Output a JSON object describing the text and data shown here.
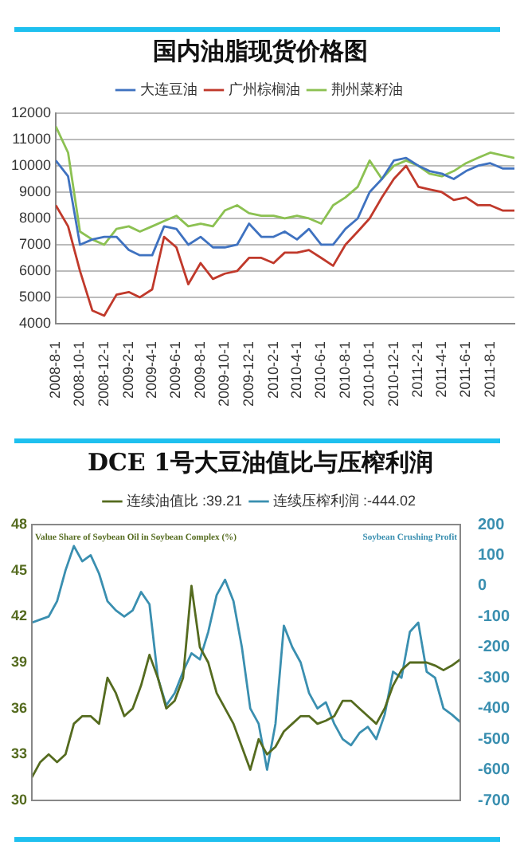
{
  "chart_data": [
    {
      "type": "line",
      "title": "国内油脂现货价格图",
      "x": [
        "2008-08",
        "2008-09",
        "2008-10",
        "2008-11",
        "2008-12",
        "2009-01",
        "2009-02",
        "2009-03",
        "2009-04",
        "2009-05",
        "2009-06",
        "2009-07",
        "2009-08",
        "2009-09",
        "2009-10",
        "2009-11",
        "2009-12",
        "2010-01",
        "2010-02",
        "2010-03",
        "2010-04",
        "2010-05",
        "2010-06",
        "2010-07",
        "2010-08",
        "2010-09",
        "2010-10",
        "2010-11",
        "2010-12",
        "2011-01",
        "2011-02",
        "2011-03",
        "2011-04",
        "2011-05",
        "2011-06",
        "2011-07",
        "2011-08",
        "2011-09",
        "2011-10"
      ],
      "series": [
        {
          "name": "大连豆油",
          "color": "#3f72c0",
          "values": [
            10200,
            9600,
            7000,
            7200,
            7300,
            7300,
            6800,
            6600,
            6600,
            7700,
            7600,
            7000,
            7300,
            6900,
            6900,
            7000,
            7800,
            7300,
            7300,
            7500,
            7200,
            7600,
            7000,
            7000,
            7600,
            8000,
            9000,
            9500,
            10200,
            10300,
            10000,
            9800,
            9700,
            9500,
            9800,
            10000,
            10100,
            9900,
            9900
          ]
        },
        {
          "name": "广州棕榈油",
          "color": "#c0392b",
          "values": [
            8500,
            7700,
            6000,
            4500,
            4300,
            5100,
            5200,
            5000,
            5300,
            7300,
            6900,
            5500,
            6300,
            5700,
            5900,
            6000,
            6500,
            6500,
            6300,
            6700,
            6700,
            6800,
            6500,
            6200,
            7000,
            7500,
            8000,
            8800,
            9500,
            10000,
            9200,
            9100,
            9000,
            8700,
            8800,
            8500,
            8500,
            8300,
            8300
          ]
        },
        {
          "name": "荆州菜籽油",
          "color": "#8cc152",
          "values": [
            11500,
            10500,
            7500,
            7200,
            7000,
            7600,
            7700,
            7500,
            7700,
            7900,
            8100,
            7700,
            7800,
            7700,
            8300,
            8500,
            8200,
            8100,
            8100,
            8000,
            8100,
            8000,
            7800,
            8500,
            8800,
            9200,
            10200,
            9500,
            10000,
            10200,
            10000,
            9700,
            9600,
            9800,
            10100,
            10300,
            10500,
            10400,
            10300
          ]
        }
      ],
      "xlim": [
        "2008-08-01",
        "2011-10-01"
      ],
      "xticks": [
        {
          "value": "2008-08-01",
          "label": "2008-8-1"
        },
        {
          "value": "2008-10-01",
          "label": "2008-10-1"
        },
        {
          "value": "2008-12-01",
          "label": "2008-12-1"
        },
        {
          "value": "2009-02-01",
          "label": "2009-2-1"
        },
        {
          "value": "2009-04-01",
          "label": "2009-4-1"
        },
        {
          "value": "2009-06-01",
          "label": "2009-6-1"
        },
        {
          "value": "2009-08-01",
          "label": "2009-8-1"
        },
        {
          "value": "2009-10-01",
          "label": "2009-10-1"
        },
        {
          "value": "2009-12-01",
          "label": "2009-12-1"
        },
        {
          "value": "2010-02-01",
          "label": "2010-2-1"
        },
        {
          "value": "2010-04-01",
          "label": "2010-4-1"
        },
        {
          "value": "2010-06-01",
          "label": "2010-6-1"
        },
        {
          "value": "2010-08-01",
          "label": "2010-8-1"
        },
        {
          "value": "2010-10-01",
          "label": "2010-10-1"
        },
        {
          "value": "2010-12-01",
          "label": "2010-12-1"
        },
        {
          "value": "2011-02-01",
          "label": "2011-2-1"
        },
        {
          "value": "2011-04-01",
          "label": "2011-4-1"
        },
        {
          "value": "2011-06-01",
          "label": "2011-6-1"
        },
        {
          "value": "2011-08-01",
          "label": "2011-8-1"
        }
      ],
      "ylim": [
        4000,
        12000
      ],
      "yticks": [
        4000,
        5000,
        6000,
        7000,
        8000,
        9000,
        10000,
        11000,
        12000
      ],
      "grid": "y",
      "legend": "top",
      "marker": "none",
      "line_style": "solid"
    },
    {
      "type": "line",
      "title": "DCE 1号大豆油值比与压榨利润",
      "ylabel": "Value Share of Soybean Oil in Soybean Complex (%)",
      "y2label": "Soybean Crushing Profit",
      "categories": [
        null,
        null,
        null,
        null,
        null,
        null,
        null,
        null,
        null,
        null,
        null,
        null,
        null,
        null,
        null,
        null,
        null,
        null,
        null,
        null,
        null,
        null,
        null,
        null,
        null,
        null,
        null,
        null,
        null,
        null,
        null,
        null,
        null,
        null,
        null,
        null,
        null,
        null,
        null,
        null,
        null,
        null,
        null,
        null,
        null,
        null,
        null,
        null,
        null,
        null,
        null,
        null
      ],
      "series": [
        {
          "name": "连续油值比 :39.21",
          "color": "#556b1f",
          "values": [
            31.5,
            32.5,
            33,
            32.5,
            33,
            35,
            35.5,
            35.5,
            35,
            38,
            37,
            35.5,
            36,
            37.5,
            39.5,
            38,
            36,
            36.5,
            38,
            44,
            40,
            39,
            37,
            36,
            35,
            33.5,
            32,
            34,
            33,
            33.5,
            34.5,
            35,
            35.5,
            35.5,
            35,
            35.2,
            35.5,
            36.5,
            36.5,
            36,
            35.5,
            35,
            36,
            37.5,
            38.5,
            39,
            39,
            39,
            38.8,
            38.5,
            38.8,
            39.2
          ]
        },
        {
          "name": "连续压榨利润 :-444.02",
          "color": "#3a8fb0",
          "axis": "y2",
          "values": [
            -120,
            -110,
            -100,
            -50,
            50,
            130,
            80,
            100,
            40,
            -50,
            -80,
            -100,
            -80,
            -20,
            -60,
            -300,
            -390,
            -350,
            -280,
            -220,
            -240,
            -150,
            -30,
            20,
            -50,
            -200,
            -400,
            -450,
            -600,
            -450,
            -130,
            -200,
            -250,
            -350,
            -400,
            -380,
            -450,
            -500,
            -520,
            -480,
            -460,
            -500,
            -420,
            -280,
            -300,
            -150,
            -120,
            -280,
            -300,
            -400,
            -420,
            -444
          ]
        }
      ],
      "ylim": [
        30,
        48
      ],
      "yticks": [
        30,
        33,
        36,
        39,
        42,
        45,
        48
      ],
      "y2lim": [
        -700,
        200
      ],
      "y2ticks": [
        -700,
        -600,
        -500,
        -400,
        -300,
        -200,
        -100,
        0,
        100,
        200
      ],
      "tick_labels": "y",
      "grid": false,
      "legend": "top",
      "marker": "none",
      "line_style": "solid"
    }
  ]
}
